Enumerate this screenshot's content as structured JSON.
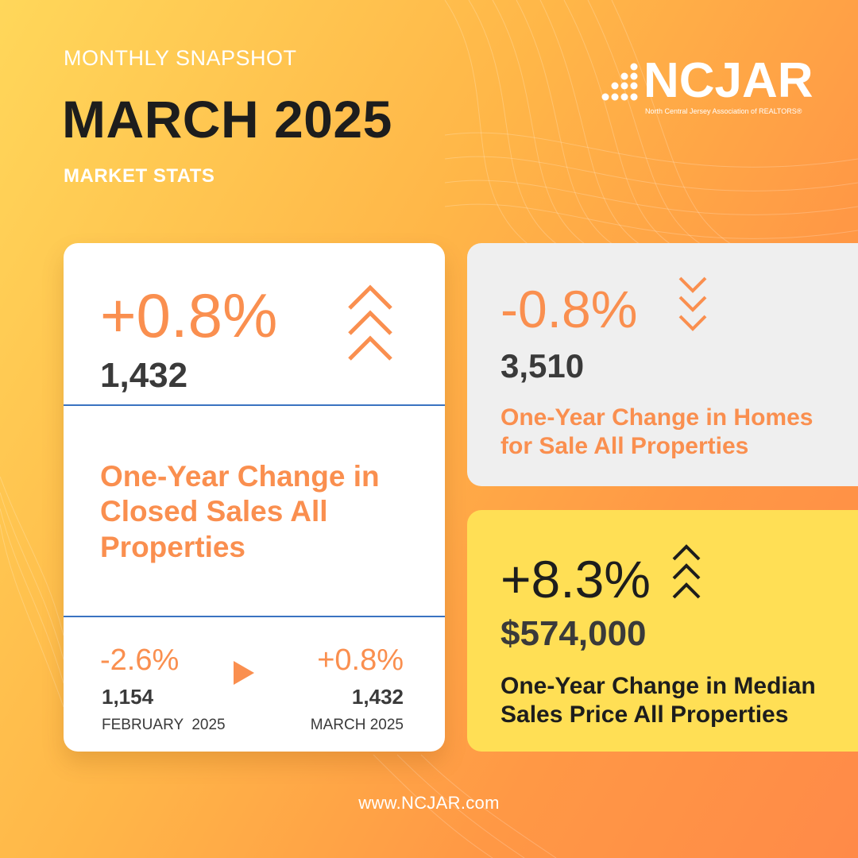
{
  "header": {
    "eyebrow": "MONTHLY SNAPSHOT",
    "title": "MARCH 2025",
    "subtitle": "MARKET STATS"
  },
  "logo": {
    "word": "NCJAR",
    "tagline": "North Central Jersey Association of REALTORS®"
  },
  "closed_sales": {
    "change": "+0.8%",
    "value": "1,432",
    "description": [
      "One-Year Change in",
      "Closed Sales All",
      "Properties"
    ],
    "trend_icon": "triple-chevron-up-icon",
    "comparison": {
      "prev_change": "-2.6%",
      "prev_value": "1,154",
      "prev_label": "FEBRUARY  2025",
      "curr_change": "+0.8%",
      "curr_value": "1,432",
      "curr_label": "MARCH 2025"
    }
  },
  "homes_for_sale": {
    "change": "-0.8%",
    "value": "3,510",
    "description": [
      "One-Year Change in Homes",
      "for Sale All Properties"
    ],
    "trend_icon": "triple-chevron-down-icon"
  },
  "median_price": {
    "change": "+8.3%",
    "value": "$574,000",
    "description": [
      "One-Year Change in Median",
      "Sales Price All Properties"
    ],
    "trend_icon": "triple-chevron-up-icon"
  },
  "footer": {
    "url": "www.NCJAR.com"
  },
  "colors": {
    "accent_orange": "#fa8f4f",
    "card_yellow": "#ffdf55",
    "divider_blue": "#3a73c1"
  }
}
